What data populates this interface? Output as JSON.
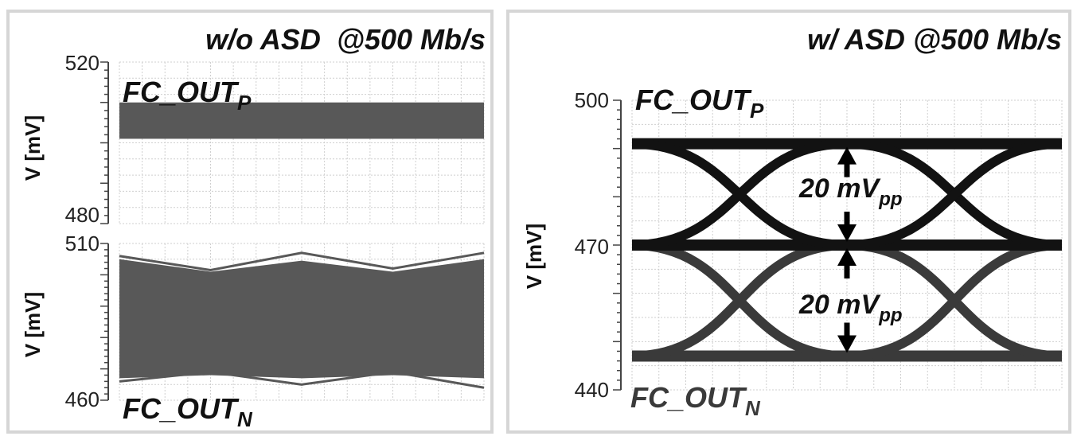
{
  "colors": {
    "trace_p": "#585858",
    "trace_n": "#585858",
    "eye_p": "#121212",
    "eye_n": "#3a3a3a",
    "grid": "#cfcfcf",
    "panel_border": "#d6d6d6"
  },
  "chart_data": [
    {
      "type": "line",
      "title": "w/o ASD  @500 Mb/s",
      "subplots": [
        {
          "ylabel": "V [mV]",
          "ylim": [
            480,
            520
          ],
          "yticks": [
            "520",
            "480"
          ],
          "signal": {
            "name": "FC_OUT",
            "sub": "P"
          },
          "band": {
            "ymin": 501,
            "ymax": 510
          }
        },
        {
          "ylabel": "V [mV]",
          "ylim": [
            460,
            510
          ],
          "yticks": [
            "510",
            "460"
          ],
          "signal": {
            "name": "FC_OUT",
            "sub": "N"
          },
          "band_x": [
            0,
            25,
            50,
            75,
            100
          ],
          "band_upper": [
            505,
            501,
            504.5,
            501,
            505
          ],
          "band_lower": [
            467,
            468,
            467,
            468,
            467
          ],
          "outer_upper": [
            506,
            501.5,
            507,
            502,
            507
          ],
          "outer_lower": [
            466,
            469,
            465,
            469,
            464
          ]
        }
      ]
    },
    {
      "type": "line",
      "title": "w/ ASD @500 Mb/s",
      "ylabel": "V [mV]",
      "ylim": [
        440,
        500
      ],
      "yticks": [
        "500",
        "470",
        "440"
      ],
      "series": [
        {
          "name": "FC_OUT",
          "sub": "P",
          "high": 491,
          "low": 470,
          "crossings": [
            25,
            75
          ]
        },
        {
          "name": "FC_OUT",
          "sub": "N",
          "high": 470,
          "low": 447,
          "crossings": [
            25,
            75
          ]
        }
      ],
      "annotations": [
        {
          "text": "20 mV",
          "sub": "pp"
        },
        {
          "text": "20 mV",
          "sub": "pp"
        }
      ]
    }
  ]
}
